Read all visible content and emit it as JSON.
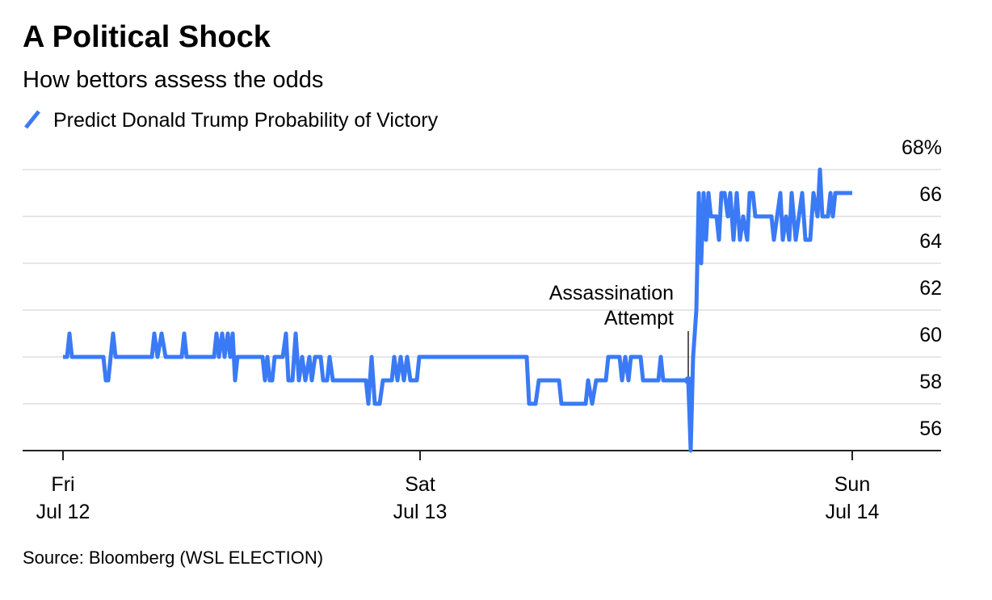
{
  "chart_data": {
    "type": "line",
    "title": "A Political Shock",
    "subtitle": "How bettors assess the odds",
    "source": "Source: Bloomberg (WSL ELECTION)",
    "xlim": [
      0,
      1137
    ],
    "xticks": [
      {
        "value": 50,
        "label": [
          "Fri",
          "Jul 12"
        ]
      },
      {
        "value": 492,
        "label": [
          "Sat",
          "Jul 13"
        ]
      },
      {
        "value": 1027,
        "label": [
          "Sun",
          "Jul 14"
        ]
      }
    ],
    "ylim": [
      56,
      68
    ],
    "yticks": [
      56,
      58,
      60,
      62,
      64,
      {
        "value": 66,
        "label": "66"
      },
      {
        "value": 68,
        "label": "68%"
      }
    ],
    "grid": true,
    "annotation": {
      "text": [
        "Assassination",
        "Attempt"
      ],
      "x": 824,
      "y": 59
    },
    "series": [
      {
        "name": "Predict Donald Trump Probability of Victory",
        "color": "#3a7af5",
        "x": [
          50,
          55,
          58,
          61,
          100,
          103,
          106,
          109,
          112,
          115,
          160,
          163,
          167,
          172,
          177,
          197,
          200,
          203,
          237,
          240,
          243,
          247,
          250,
          254,
          257,
          260,
          263,
          266,
          297,
          300,
          303,
          306,
          309,
          312,
          322,
          326,
          329,
          334,
          338,
          342,
          346,
          350,
          355,
          358,
          362,
          369,
          372,
          377,
          380,
          384,
          390,
          425,
          428,
          432,
          436,
          442,
          446,
          457,
          460,
          464,
          468,
          472,
          476,
          480,
          488,
          491,
          624,
          627,
          635,
          639,
          664,
          667,
          697,
          700,
          705,
          710,
          722,
          725,
          739,
          742,
          746,
          750,
          753,
          765,
          768,
          787,
          790,
          793,
          824,
          827,
          830,
          834,
          837,
          840,
          843,
          846,
          849,
          852,
          859,
          862,
          865,
          869,
          873,
          876,
          880,
          884,
          888,
          892,
          897,
          900,
          904,
          907,
          927,
          930,
          934,
          938,
          941,
          945,
          949,
          952,
          957,
          961,
          965,
          969,
          975,
          979,
          984,
          987,
          990,
          997,
          1000,
          1003,
          1006,
          1027
        ],
        "values": [
          60,
          60,
          61,
          60,
          60,
          59,
          59,
          60,
          61,
          60,
          60,
          61,
          60,
          61,
          60,
          60,
          61,
          60,
          60,
          61,
          60,
          61,
          60,
          61,
          60,
          61,
          59,
          60,
          60,
          59,
          60,
          59,
          59,
          60,
          60,
          61,
          59,
          59,
          61,
          59,
          60,
          59,
          60,
          59,
          60,
          60,
          59,
          59,
          60,
          59,
          59,
          59,
          58,
          60,
          58,
          58,
          59,
          59,
          60,
          59,
          60,
          59,
          60,
          59,
          59,
          60,
          60,
          58,
          58,
          59,
          59,
          58,
          58,
          59,
          58,
          59,
          59,
          60,
          60,
          59,
          60,
          59,
          60,
          60,
          59,
          59,
          60,
          59,
          59,
          56,
          60,
          62,
          67,
          64,
          67,
          65,
          67,
          66,
          66,
          65,
          67,
          67,
          66,
          67,
          65,
          67,
          65,
          66,
          65,
          67,
          67,
          66,
          66,
          65,
          66,
          67,
          65,
          66,
          65,
          67,
          65,
          66,
          67,
          65,
          65,
          67,
          66,
          68,
          66,
          66,
          67,
          66,
          67,
          67
        ]
      }
    ]
  }
}
